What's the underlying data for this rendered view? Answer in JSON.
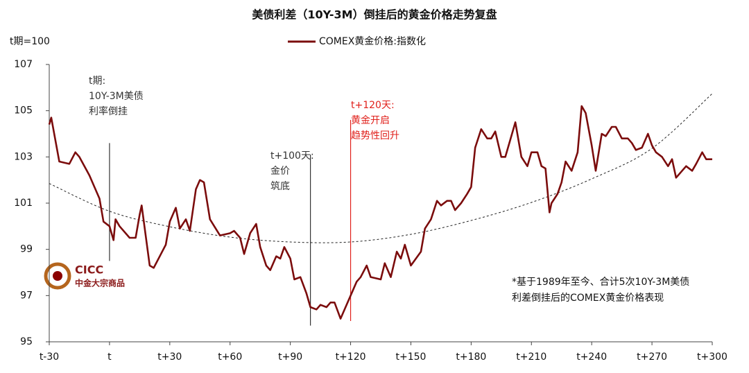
{
  "chart_data": {
    "type": "line",
    "title": "美债利差（10Y-3M）倒挂后的黄金价格走势复盘",
    "y_label": "t期=100",
    "series": [
      {
        "name": "COMEX黄金价格:指数化",
        "color": "#7b0c0c",
        "x": [
          -30,
          -29,
          -25,
          -20,
          -17,
          -15,
          -10,
          -8,
          -5,
          -3,
          0,
          2,
          3,
          5,
          10,
          13,
          15,
          16,
          18,
          20,
          22,
          25,
          28,
          30,
          33,
          35,
          38,
          40,
          43,
          45,
          47,
          50,
          55,
          60,
          62,
          65,
          67,
          70,
          73,
          75,
          78,
          80,
          83,
          85,
          87,
          90,
          92,
          95,
          98,
          100,
          103,
          105,
          108,
          110,
          112,
          115,
          118,
          120,
          123,
          125,
          128,
          130,
          135,
          137,
          140,
          143,
          145,
          147,
          150,
          155,
          157,
          160,
          163,
          165,
          168,
          170,
          172,
          175,
          178,
          180,
          182,
          185,
          188,
          190,
          192,
          195,
          197,
          200,
          202,
          205,
          208,
          210,
          213,
          215,
          217,
          219,
          220,
          223,
          225,
          227,
          230,
          233,
          235,
          237,
          240,
          242,
          245,
          247,
          250,
          252,
          255,
          258,
          260,
          262,
          265,
          268,
          270,
          272,
          275,
          278,
          280,
          282,
          285,
          287,
          290,
          292,
          295,
          297,
          300
        ],
        "values": [
          104.4,
          104.7,
          102.8,
          102.7,
          103.2,
          103.0,
          102.2,
          101.8,
          101.2,
          100.2,
          100.0,
          99.4,
          100.3,
          100.0,
          99.5,
          99.5,
          100.5,
          100.9,
          99.6,
          98.3,
          98.2,
          98.7,
          99.2,
          100.2,
          100.8,
          99.9,
          100.3,
          99.8,
          101.6,
          102.0,
          101.9,
          100.3,
          99.6,
          99.7,
          99.8,
          99.5,
          98.8,
          99.7,
          100.1,
          99.1,
          98.3,
          98.1,
          98.7,
          98.6,
          99.1,
          98.6,
          97.7,
          97.8,
          97.1,
          96.5,
          96.4,
          96.6,
          96.5,
          96.7,
          96.7,
          96.0,
          96.6,
          97.0,
          97.6,
          97.8,
          98.3,
          97.8,
          97.7,
          98.4,
          97.8,
          98.9,
          98.6,
          99.2,
          98.3,
          98.9,
          99.9,
          100.3,
          101.1,
          100.9,
          101.1,
          101.1,
          100.7,
          101.0,
          101.4,
          101.7,
          103.4,
          104.2,
          103.8,
          103.8,
          104.1,
          103.0,
          103.0,
          103.9,
          104.5,
          103.0,
          102.6,
          103.2,
          103.2,
          102.6,
          102.5,
          100.6,
          101.0,
          101.4,
          101.9,
          102.8,
          102.4,
          103.2,
          105.2,
          104.9,
          103.5,
          102.4,
          104.0,
          103.9,
          104.3,
          104.3,
          103.8,
          103.8,
          103.6,
          103.3,
          103.4,
          104.0,
          103.5,
          103.2,
          103.0,
          102.6,
          102.9,
          102.1,
          102.4,
          102.6,
          102.4,
          102.7,
          103.2,
          102.9,
          102.9
        ]
      }
    ],
    "trendline": {
      "x": [
        -30,
        0,
        30,
        60,
        90,
        120,
        150,
        180,
        210,
        240,
        270,
        300
      ],
      "values": [
        101.85,
        100.65,
        99.98,
        99.53,
        99.32,
        99.32,
        99.65,
        100.25,
        101.03,
        102.05,
        103.37,
        105.74
      ]
    },
    "xlim": [
      -30,
      300
    ],
    "xticks": [
      {
        "value": -30,
        "label": "t-30"
      },
      {
        "value": 0,
        "label": "t"
      },
      {
        "value": 30,
        "label": "t+30"
      },
      {
        "value": 60,
        "label": "t+60"
      },
      {
        "value": 90,
        "label": "t+90"
      },
      {
        "value": 120,
        "label": "t+120"
      },
      {
        "value": 150,
        "label": "t+150"
      },
      {
        "value": 180,
        "label": "t+180"
      },
      {
        "value": 210,
        "label": "t+210"
      },
      {
        "value": 240,
        "label": "t+240"
      },
      {
        "value": 270,
        "label": "t+270"
      },
      {
        "value": 300,
        "label": "t+300"
      }
    ],
    "ylim": [
      95,
      107
    ],
    "yticks": [
      95,
      97,
      99,
      101,
      103,
      105,
      107
    ],
    "annotations": [
      {
        "x": 0,
        "color": "#333333",
        "lines": [
          "t期:",
          "10Y-3M美债",
          "利率倒挂"
        ]
      },
      {
        "x": 100,
        "color": "#333333",
        "lines": [
          "t+100天:",
          "金价",
          "筑底"
        ]
      },
      {
        "x": 120,
        "color": "#e0201b",
        "lines": [
          "t+120天:",
          "黄金开启",
          "趋势性回升"
        ]
      }
    ],
    "note": [
      "*基于1989年至今、合计5次10Y-3M美债",
      "利差倒挂后的COMEX黄金价格表现"
    ],
    "watermark": [
      "CICC",
      "中金大宗商品"
    ]
  }
}
